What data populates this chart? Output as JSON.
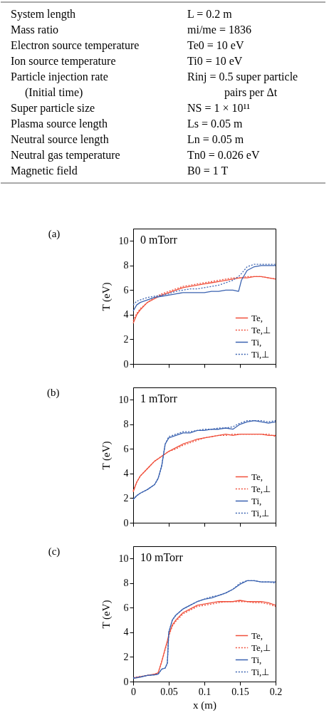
{
  "chart_data": [
    {
      "type": "other",
      "annotations": [
        "System length",
        "L = 0.2 m",
        "Mass ratio",
        "mi/me = 1836",
        "Electron source temperature",
        "Te0 = 10 eV",
        "Ion source temperature",
        "Ti0 = 10 eV",
        "Particle injection rate",
        "Rinj = 0.5 super particle",
        "(Initial time)",
        "pairs per Δt",
        "Super particle size",
        "NS = 1 × 10¹¹",
        "Plasma source length",
        "Ls = 0.05 m",
        "Neutral source length",
        "Ln = 0.05 m",
        "Neutral gas temperature",
        "Tn0 = 0.026 eV",
        "Magnetic field",
        "B0 = 1 T"
      ]
    },
    {
      "type": "line",
      "title": "(a)",
      "annotations": [
        "0 mTorr"
      ],
      "ylabel": "T (eV)",
      "xlim": [
        0,
        0.2
      ],
      "xticks": [
        0,
        0.05,
        0.1,
        0.15,
        0.2
      ],
      "ylim": [
        0,
        11
      ],
      "yticks": [
        0,
        2,
        4,
        6,
        8,
        10
      ],
      "tick_labels": "y",
      "legend": "bottom right",
      "grid": false,
      "x": [
        0,
        0.005,
        0.01,
        0.02,
        0.03,
        0.04,
        0.05,
        0.06,
        0.07,
        0.08,
        0.09,
        0.1,
        0.11,
        0.12,
        0.13,
        0.14,
        0.15,
        0.16,
        0.17,
        0.18,
        0.19,
        0.2
      ],
      "series": [
        {
          "name": "Te,",
          "color": "#f0503c",
          "line_style": "solid",
          "values": [
            3.3,
            4.0,
            4.4,
            5.0,
            5.3,
            5.6,
            5.8,
            6.0,
            6.2,
            6.3,
            6.4,
            6.5,
            6.6,
            6.7,
            6.8,
            6.9,
            7.0,
            7.0,
            7.1,
            7.1,
            7.0,
            6.9
          ]
        },
        {
          "name": "Te,⊥",
          "color": "#f0503c",
          "line_style": "dotted",
          "values": [
            3.5,
            4.1,
            4.5,
            5.0,
            5.4,
            5.7,
            5.9,
            6.1,
            6.3,
            6.4,
            6.5,
            6.6,
            6.7,
            6.8,
            6.9,
            7.0,
            7.0,
            7.1,
            7.1,
            7.1,
            7.0,
            6.9
          ]
        },
        {
          "name": "Ti,",
          "color": "#3a62b0",
          "line_style": "solid",
          "x": [
            0,
            0.005,
            0.01,
            0.02,
            0.03,
            0.04,
            0.05,
            0.06,
            0.07,
            0.08,
            0.09,
            0.1,
            0.11,
            0.12,
            0.13,
            0.14,
            0.148,
            0.152,
            0.16,
            0.17,
            0.18,
            0.19,
            0.2
          ],
          "values": [
            4.3,
            4.8,
            5.0,
            5.2,
            5.4,
            5.5,
            5.6,
            5.7,
            5.8,
            5.8,
            5.8,
            5.8,
            5.9,
            5.9,
            6.0,
            6.0,
            5.9,
            6.8,
            7.6,
            7.9,
            8.0,
            8.0,
            8.0
          ]
        },
        {
          "name": "Ti,⊥",
          "color": "#3a62b0",
          "line_style": "dotted",
          "values": [
            4.8,
            5.1,
            5.2,
            5.4,
            5.5,
            5.6,
            5.7,
            5.9,
            6.0,
            6.1,
            6.1,
            6.2,
            6.3,
            6.4,
            6.6,
            6.8,
            7.2,
            7.9,
            8.1,
            8.1,
            8.1,
            8.1
          ]
        }
      ]
    },
    {
      "type": "line",
      "title": "(b)",
      "annotations": [
        "1 mTorr"
      ],
      "ylabel": "T (eV)",
      "xlim": [
        0,
        0.2
      ],
      "xticks": [
        0,
        0.05,
        0.1,
        0.15,
        0.2
      ],
      "ylim": [
        0,
        11
      ],
      "yticks": [
        0,
        2,
        4,
        6,
        8,
        10
      ],
      "tick_labels": "y",
      "legend": "bottom right",
      "grid": false,
      "x": [
        0,
        0.005,
        0.01,
        0.02,
        0.03,
        0.035,
        0.04,
        0.045,
        0.05,
        0.06,
        0.07,
        0.08,
        0.09,
        0.1,
        0.11,
        0.12,
        0.13,
        0.14,
        0.15,
        0.16,
        0.17,
        0.18,
        0.19,
        0.2
      ],
      "series": [
        {
          "name": "Te,",
          "color": "#f0503c",
          "line_style": "solid",
          "values": [
            2.5,
            3.3,
            3.8,
            4.4,
            5.0,
            5.2,
            5.4,
            5.6,
            5.8,
            6.1,
            6.4,
            6.6,
            6.8,
            6.9,
            7.0,
            7.1,
            7.2,
            7.1,
            7.2,
            7.2,
            7.2,
            7.2,
            7.1,
            7.1
          ]
        },
        {
          "name": "Te,⊥",
          "color": "#f0503c",
          "line_style": "dotted",
          "values": [
            2.6,
            3.3,
            3.8,
            4.4,
            5.0,
            5.2,
            5.4,
            5.6,
            5.8,
            6.0,
            6.3,
            6.5,
            6.7,
            6.9,
            7.0,
            7.1,
            7.1,
            7.2,
            7.2,
            7.2,
            7.2,
            7.2,
            7.2,
            7.0
          ]
        },
        {
          "name": "Ti,",
          "color": "#3a62b0",
          "line_style": "solid",
          "values": [
            1.9,
            2.2,
            2.4,
            2.7,
            3.1,
            3.6,
            4.6,
            6.4,
            6.9,
            7.1,
            7.3,
            7.3,
            7.5,
            7.5,
            7.6,
            7.6,
            7.7,
            7.6,
            8.0,
            8.2,
            8.3,
            8.2,
            8.1,
            8.2
          ]
        },
        {
          "name": "Ti,⊥",
          "color": "#3a62b0",
          "line_style": "dotted",
          "values": [
            1.9,
            2.2,
            2.4,
            2.7,
            3.1,
            3.6,
            4.6,
            6.4,
            7.0,
            7.2,
            7.4,
            7.4,
            7.5,
            7.6,
            7.6,
            7.7,
            7.7,
            7.8,
            8.1,
            8.3,
            8.3,
            8.3,
            8.2,
            8.3
          ]
        }
      ]
    },
    {
      "type": "line",
      "title": "(c)",
      "annotations": [
        "10 mTorr"
      ],
      "ylabel": "T (eV)",
      "xlabel": "x (m)",
      "xlim": [
        0,
        0.2
      ],
      "xticks": [
        0,
        0.05,
        0.1,
        0.15,
        0.2
      ],
      "ylim": [
        0,
        11
      ],
      "yticks": [
        0,
        2,
        4,
        6,
        8,
        10
      ],
      "legend": "bottom right",
      "grid": false,
      "x": [
        0,
        0.01,
        0.02,
        0.03,
        0.035,
        0.04,
        0.045,
        0.048,
        0.05,
        0.055,
        0.06,
        0.07,
        0.08,
        0.09,
        0.1,
        0.11,
        0.12,
        0.13,
        0.14,
        0.15,
        0.16,
        0.17,
        0.18,
        0.19,
        0.2
      ],
      "series": [
        {
          "name": "Te,",
          "color": "#f0503c",
          "line_style": "solid",
          "values": [
            0.3,
            0.4,
            0.5,
            0.6,
            0.7,
            1.6,
            2.7,
            3.3,
            3.8,
            4.6,
            5.0,
            5.6,
            5.9,
            6.2,
            6.3,
            6.4,
            6.5,
            6.5,
            6.5,
            6.6,
            6.5,
            6.5,
            6.5,
            6.4,
            6.2
          ]
        },
        {
          "name": "Te,⊥",
          "color": "#f0503c",
          "line_style": "dotted",
          "values": [
            0.3,
            0.4,
            0.5,
            0.6,
            0.7,
            1.6,
            2.6,
            3.2,
            3.7,
            4.5,
            4.9,
            5.5,
            5.8,
            6.1,
            6.2,
            6.3,
            6.4,
            6.5,
            6.5,
            6.5,
            6.5,
            6.4,
            6.4,
            6.3,
            6.1
          ]
        },
        {
          "name": "Ti,",
          "color": "#3a62b0",
          "line_style": "solid",
          "values": [
            0.25,
            0.35,
            0.5,
            0.55,
            0.6,
            1.0,
            1.1,
            1.5,
            4.0,
            5.0,
            5.4,
            5.9,
            6.2,
            6.5,
            6.7,
            6.8,
            7.0,
            7.2,
            7.5,
            7.9,
            8.2,
            8.2,
            8.1,
            8.1,
            8.1
          ]
        },
        {
          "name": "Ti,⊥",
          "color": "#3a62b0",
          "line_style": "dotted",
          "values": [
            0.3,
            0.4,
            0.5,
            0.55,
            0.6,
            1.0,
            1.1,
            1.5,
            4.0,
            5.0,
            5.4,
            5.9,
            6.2,
            6.5,
            6.7,
            6.9,
            7.0,
            7.2,
            7.5,
            8.0,
            8.2,
            8.2,
            8.1,
            8.1,
            8.0
          ]
        }
      ]
    }
  ]
}
